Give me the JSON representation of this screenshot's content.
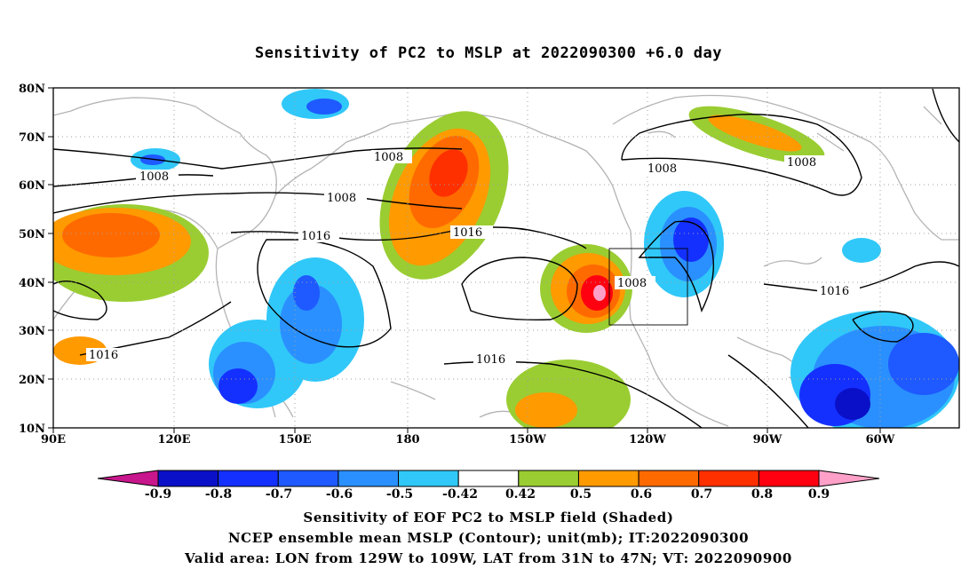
{
  "title": "Sensitivity of PC2 to MSLP at 2022090300 +6.0 day",
  "map": {
    "lat_labels": [
      "80N",
      "70N",
      "60N",
      "50N",
      "40N",
      "30N",
      "20N",
      "10N"
    ],
    "lon_labels": [
      "90E",
      "120E",
      "150E",
      "180",
      "150W",
      "120W",
      "90W",
      "60W"
    ],
    "contour_labels": [
      "1008",
      "1008",
      "1008",
      "1008",
      "1008",
      "1016",
      "1016",
      "1016",
      "1016",
      "1016",
      "1008"
    ],
    "valid_box": {
      "lon_from": "129W",
      "lon_to": "109W",
      "lat_from": "31N",
      "lat_to": "47N"
    }
  },
  "colorbar": {
    "ticks": [
      "-0.9",
      "-0.8",
      "-0.7",
      "-0.6",
      "-0.5",
      "-0.42",
      "0.42",
      "0.5",
      "0.6",
      "0.7",
      "0.8",
      "0.9"
    ],
    "colors": [
      "#c8168c",
      "#0a10c8",
      "#1430ff",
      "#1e5aff",
      "#2a90ff",
      "#30c8f8",
      "#ffffff",
      "#9acd32",
      "#ff9a00",
      "#ff6a00",
      "#ff3000",
      "#ff0010",
      "#ffa0c8"
    ]
  },
  "captions": {
    "line1": "Sensitivity of EOF PC2 to MSLP field (Shaded)",
    "line2": "NCEP ensemble mean MSLP (Contour); unit(mb); IT:2022090300",
    "line3": "Valid area: LON from 129W to 109W, LAT from 31N to 47N; VT: 2022090900"
  }
}
